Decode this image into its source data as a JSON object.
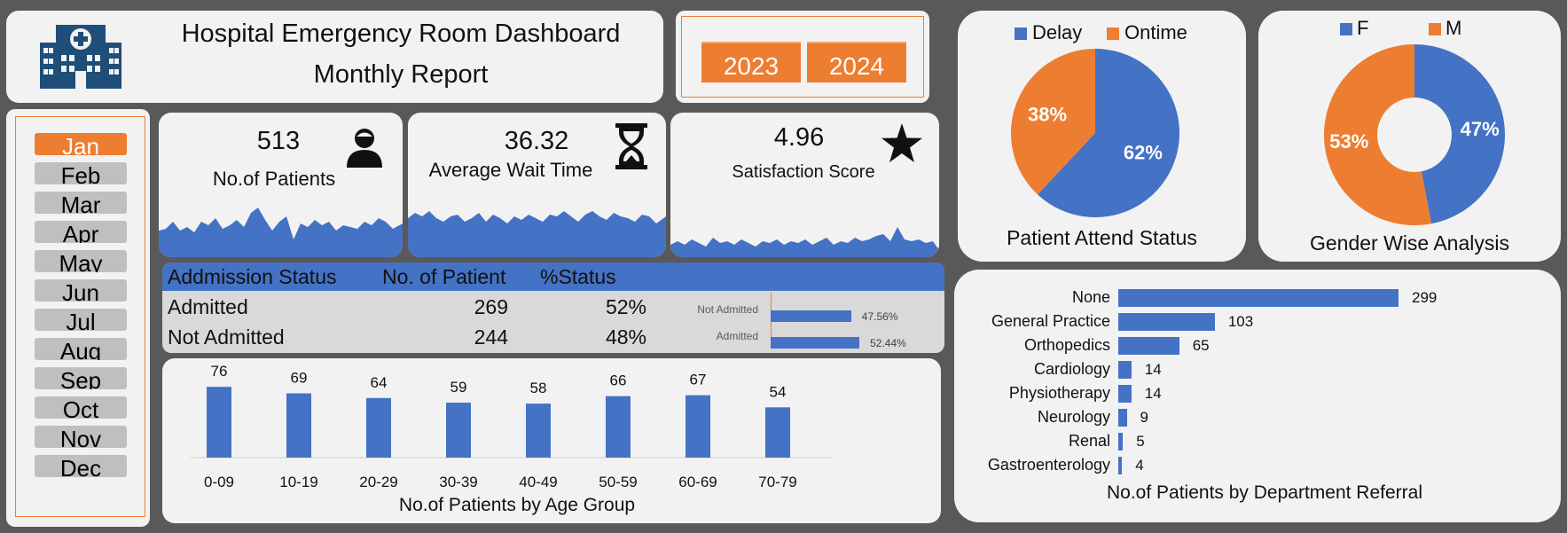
{
  "header": {
    "title_line1": "Hospital Emergency Room Dashboard",
    "title_line2": "Monthly Report",
    "logo_icon": "hospital-icon"
  },
  "years": [
    "2023",
    "2024"
  ],
  "months": {
    "items": [
      "Jan",
      "Feb",
      "Mar",
      "Apr",
      "May",
      "Jun",
      "Jul",
      "Aug",
      "Sep",
      "Oct",
      "Nov",
      "Dec"
    ],
    "selected": "Jan"
  },
  "kpis": {
    "patients": {
      "value": "513",
      "label": "No.of Patients",
      "icon": "person-icon"
    },
    "wait_time": {
      "value": "36.32",
      "label": "Average Wait Time",
      "icon": "hourglass-icon"
    },
    "satisfaction": {
      "value": "4.96",
      "label": "Satisfaction Score",
      "icon": "star-icon"
    }
  },
  "admission": {
    "headers": [
      "Addmission Status",
      "No. of Patient",
      "%Status"
    ],
    "rows": [
      {
        "status": "Admitted",
        "count": "269",
        "pct": "52%"
      },
      {
        "status": "Not Admitted",
        "count": "244",
        "pct": "48%"
      }
    ],
    "mini_bars": [
      {
        "label": "Not Admitted",
        "value_label": "47.56%",
        "value": 47.56
      },
      {
        "label": "Admitted",
        "value_label": "52.44%",
        "value": 52.44
      }
    ]
  },
  "colors": {
    "blue": "#4472c4",
    "orange": "#ed7d31",
    "panel": "#f2f2f2",
    "background": "#595959"
  },
  "chart_data": [
    {
      "type": "bar",
      "title": "No.of Patients by Age Group",
      "categories": [
        "0-09",
        "10-19",
        "20-29",
        "30-39",
        "40-49",
        "50-59",
        "60-69",
        "70-79"
      ],
      "values": [
        76,
        69,
        64,
        59,
        58,
        66,
        67,
        54
      ],
      "ylim": [
        0,
        80
      ],
      "grid": false
    },
    {
      "type": "pie",
      "title": "Patient Attend Status",
      "categories": [
        "Delay",
        "Ontime"
      ],
      "values": [
        62,
        38
      ],
      "labels": [
        "62%",
        "38%"
      ],
      "legend": "top"
    },
    {
      "type": "pie",
      "title": "Gender Wise Analysis",
      "categories": [
        "F",
        "M"
      ],
      "values": [
        47,
        53
      ],
      "labels": [
        "47%",
        "53%"
      ],
      "legend": "top",
      "donut": true
    },
    {
      "type": "bar",
      "orientation": "horizontal",
      "title": "No.of Patients by Department Referral",
      "categories": [
        "None",
        "General Practice",
        "Orthopedics",
        "Cardiology",
        "Physiotherapy",
        "Neurology",
        "Renal",
        "Gastroenterology"
      ],
      "values": [
        299,
        103,
        65,
        14,
        14,
        9,
        5,
        4
      ],
      "grid": false
    }
  ]
}
